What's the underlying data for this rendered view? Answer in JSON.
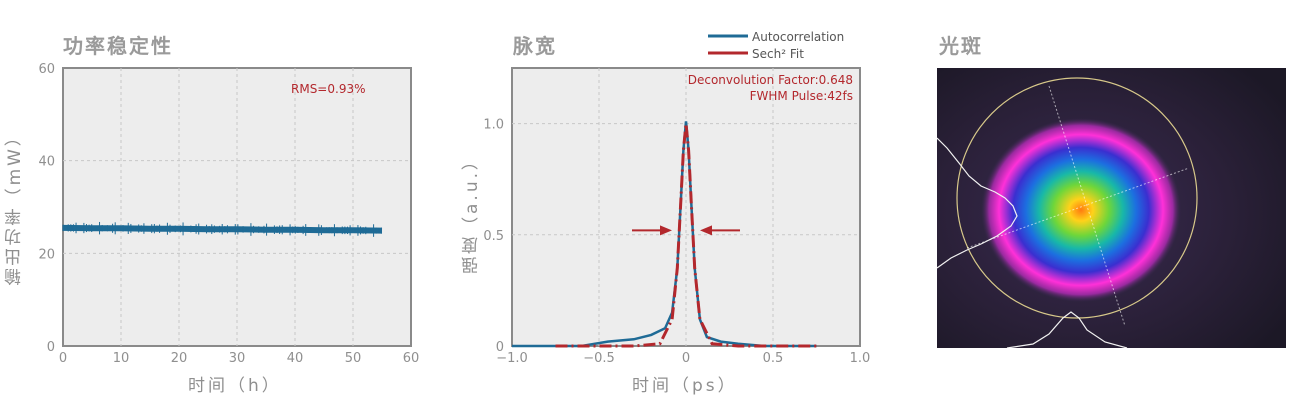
{
  "panels": {
    "power": {
      "title": "功率稳定性",
      "xlabel": "时间（h）",
      "ylabel": "输出功率（mW）"
    },
    "pulse": {
      "title": "脉宽",
      "xlabel": "时间（ps）",
      "ylabel": "强度（a.u.）"
    },
    "beam": {
      "title": "光斑"
    }
  },
  "chart_data": [
    {
      "type": "line",
      "id": "power",
      "title": "功率稳定性",
      "xlabel": "时间（h）",
      "ylabel": "输出功率（mW）",
      "xlim": [
        0,
        60
      ],
      "ylim": [
        0,
        60
      ],
      "xticks": [
        0,
        10,
        20,
        30,
        40,
        50,
        60
      ],
      "yticks": [
        0,
        20,
        40,
        60
      ],
      "grid": true,
      "annotation": "RMS=0.93%",
      "series": [
        {
          "x": [
            0,
            5,
            10,
            15,
            20,
            25,
            30,
            35,
            40,
            45,
            50,
            55
          ],
          "y": [
            25.5,
            25.4,
            25.4,
            25.3,
            25.3,
            25.2,
            25.2,
            25.1,
            25.1,
            25.0,
            25.0,
            24.9
          ],
          "color": "#1f6b96"
        }
      ]
    },
    {
      "type": "line",
      "id": "pulse",
      "title": "脉宽",
      "xlabel": "时间（ps）",
      "ylabel": "强度（a.u.）",
      "xlim": [
        -1.0,
        1.0
      ],
      "ylim": [
        0,
        1.25
      ],
      "xticks": [
        -1.0,
        -0.5,
        0,
        0.5,
        1.0
      ],
      "xtick_labels": [
        "−1.0",
        "−0.5",
        "0",
        "0.5",
        "1.0"
      ],
      "yticks": [
        0,
        0.5,
        1.0
      ],
      "ytick_labels": [
        "0",
        "0.5",
        "1.0"
      ],
      "grid": true,
      "legend_position": "top-right",
      "annotations": [
        "Deconvolution Factor:0.648",
        "FWHM Pulse:42fs"
      ],
      "series": [
        {
          "name": "Autocorrelation",
          "color": "#1f6b96",
          "style": "solid",
          "x": [
            -1.0,
            -0.6,
            -0.45,
            -0.3,
            -0.2,
            -0.12,
            -0.08,
            -0.05,
            -0.03,
            -0.015,
            0,
            0.015,
            0.03,
            0.05,
            0.08,
            0.12,
            0.2,
            0.3,
            0.45,
            0.6,
            0.75
          ],
          "y": [
            0.0,
            0.0,
            0.02,
            0.03,
            0.05,
            0.08,
            0.15,
            0.35,
            0.65,
            0.88,
            1.01,
            0.88,
            0.65,
            0.35,
            0.12,
            0.04,
            0.02,
            0.01,
            0.0,
            0.0,
            0.0
          ]
        },
        {
          "name": "Sech² Fit",
          "color": "#b3282d",
          "style": "dashed",
          "x": [
            -0.75,
            -0.3,
            -0.15,
            -0.08,
            -0.05,
            -0.03,
            -0.015,
            0,
            0.015,
            0.03,
            0.05,
            0.08,
            0.15,
            0.3,
            0.75
          ],
          "y": [
            0.0,
            0.0,
            0.01,
            0.12,
            0.35,
            0.65,
            0.88,
            1.0,
            0.88,
            0.65,
            0.35,
            0.12,
            0.01,
            0.0,
            0.0
          ]
        }
      ],
      "fwhm_arrows_y": 0.52
    }
  ]
}
